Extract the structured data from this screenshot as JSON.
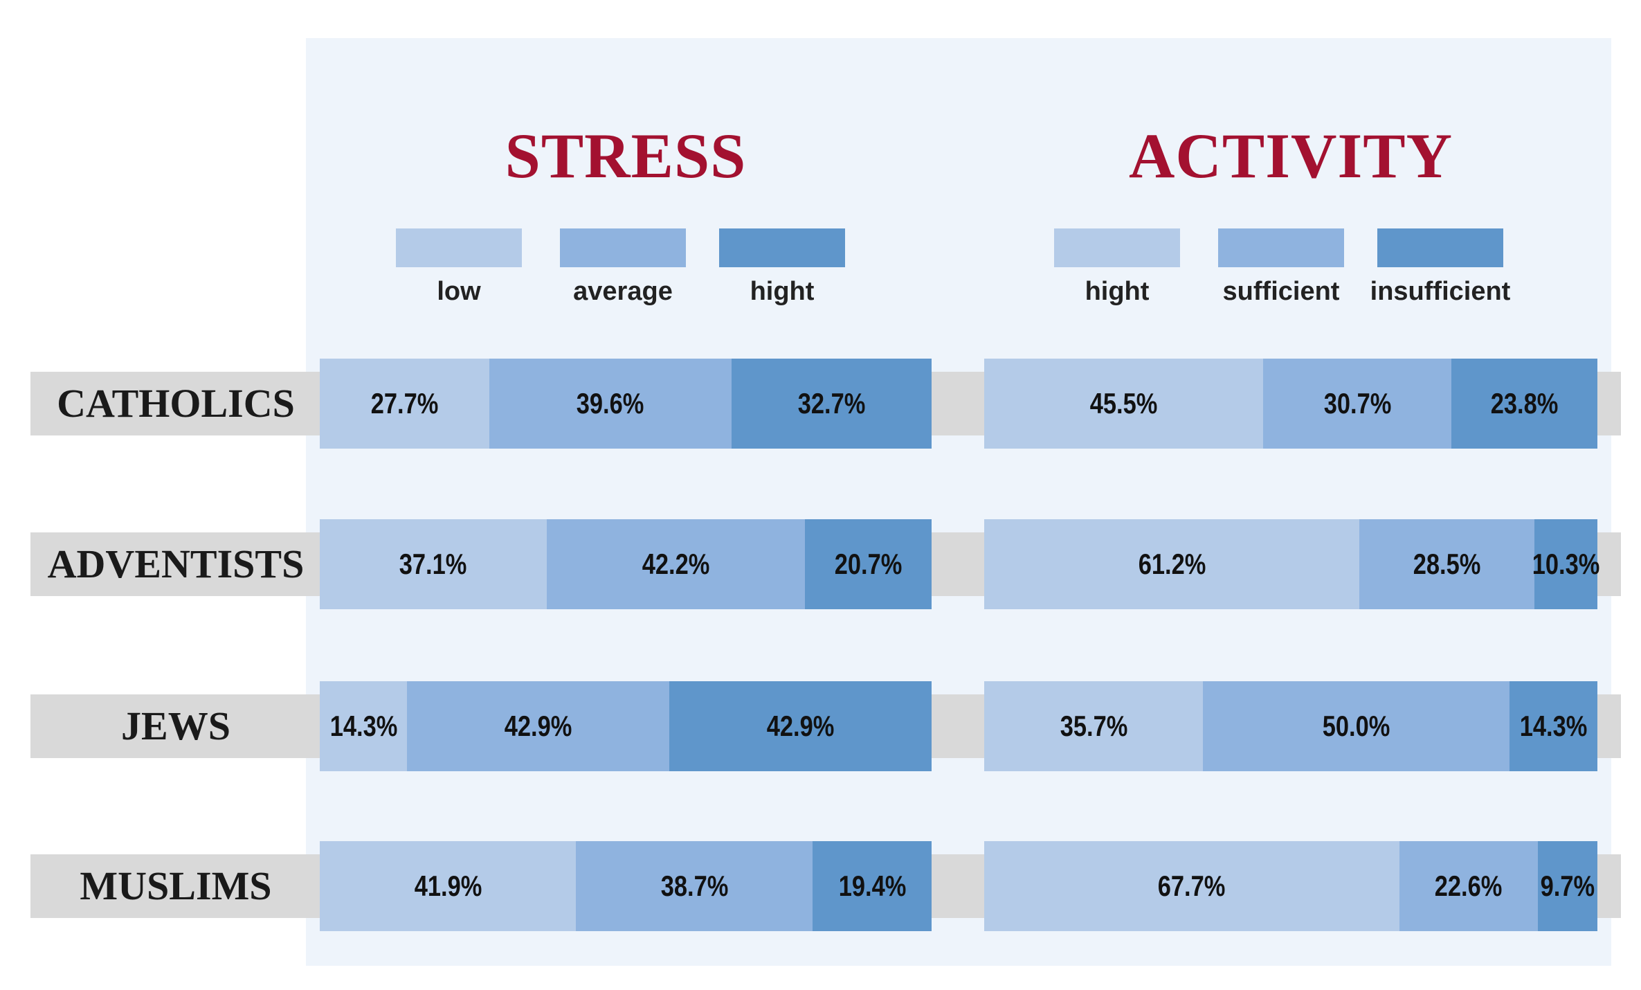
{
  "chart_data": [
    {
      "type": "bar",
      "orientation": "horizontal",
      "stacked": true,
      "normalized_percent": true,
      "title": "STRESS",
      "categories": [
        "CATHOLICS",
        "ADVENTISTS",
        "JEWS",
        "MUSLIMS"
      ],
      "series": [
        {
          "name": "low",
          "color": "#b4cbe8",
          "values": [
            27.7,
            37.1,
            14.3,
            41.9
          ],
          "labels": [
            "27.7%",
            "37.1%",
            "14.3%",
            "41.9%"
          ]
        },
        {
          "name": "average",
          "color": "#8fb3df",
          "values": [
            39.6,
            42.2,
            42.9,
            38.7
          ],
          "labels": [
            "39.6%",
            "42.2%",
            "42.9%",
            "38.7%"
          ]
        },
        {
          "name": "hight",
          "color": "#5f96cb",
          "values": [
            32.7,
            20.7,
            42.9,
            19.4
          ],
          "labels": [
            "32.7%",
            "20.7%",
            "42.9%",
            "19.4%"
          ]
        }
      ]
    },
    {
      "type": "bar",
      "orientation": "horizontal",
      "stacked": true,
      "normalized_percent": true,
      "title": "ACTIVITY",
      "categories": [
        "CATHOLICS",
        "ADVENTISTS",
        "JEWS",
        "MUSLIMS"
      ],
      "series": [
        {
          "name": "hight",
          "color": "#b4cbe8",
          "values": [
            45.5,
            61.2,
            35.7,
            67.7
          ],
          "labels": [
            "45.5%",
            "61.2%",
            "35.7%",
            "67.7%"
          ]
        },
        {
          "name": "sufficient",
          "color": "#8fb3df",
          "values": [
            30.7,
            28.5,
            50.0,
            22.6
          ],
          "labels": [
            "30.7%",
            "28.5%",
            "50.0%",
            "22.6%"
          ]
        },
        {
          "name": "insufficient",
          "color": "#5f96cb",
          "values": [
            23.8,
            10.3,
            14.3,
            9.7
          ],
          "labels": [
            "23.8%",
            "10.3%",
            "14.3%",
            "9.7%"
          ]
        }
      ]
    }
  ]
}
